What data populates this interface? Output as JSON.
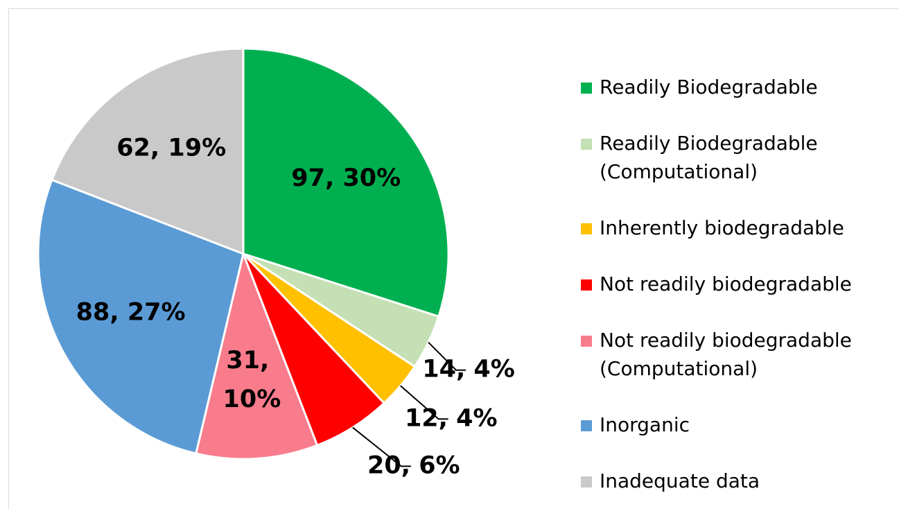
{
  "chart_data": {
    "type": "pie",
    "categories": [
      "Readily Biodegradable",
      "Readily Biodegradable (Computational)",
      "Inherently biodegradable",
      "Not readily biodegradable",
      "Not readily biodegradable (Computational)",
      "Inorganic",
      "Inadequate data"
    ],
    "values": [
      97,
      14,
      12,
      20,
      31,
      88,
      62
    ],
    "value_labels": [
      "97, 30%",
      "14, 4%",
      "12, 4%",
      "20, 6%",
      "31, 10%",
      "88, 27%",
      "62, 19%"
    ],
    "colors": [
      "#00b050",
      "#c5e0b4",
      "#ffc000",
      "#ff0000",
      "#f87c8c",
      "#5b9bd5",
      "#c9c9c9"
    ],
    "legend": "right"
  }
}
